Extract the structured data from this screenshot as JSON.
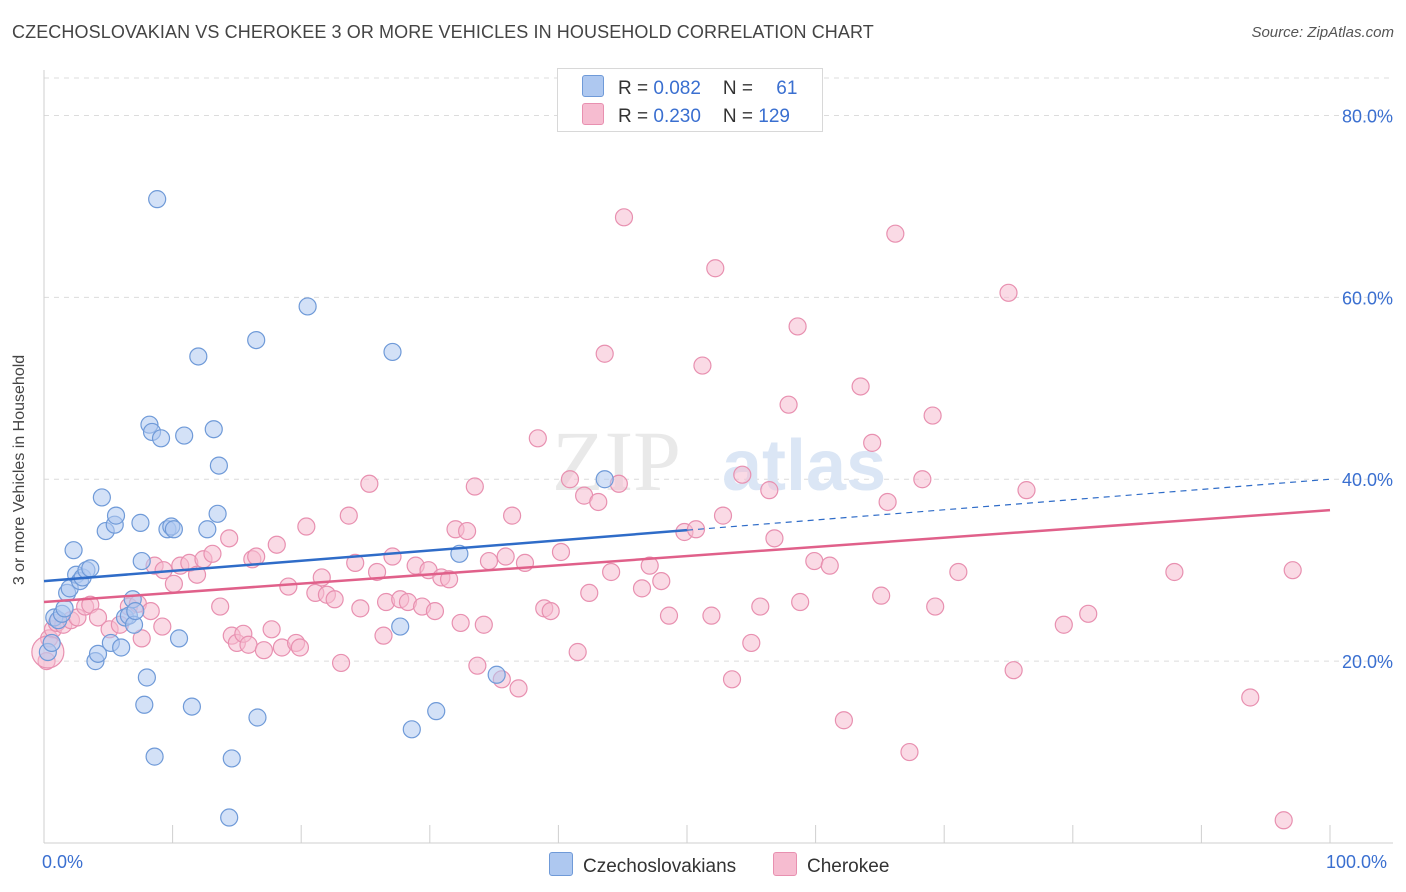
{
  "title": "CZECHOSLOVAKIAN VS CHEROKEE 3 OR MORE VEHICLES IN HOUSEHOLD CORRELATION CHART",
  "source": "Source: ZipAtlas.com",
  "legend": {
    "rows": [
      {
        "r_label": "R = ",
        "r_value": "0.082",
        "n_label": "N = ",
        "n_value": "61"
      },
      {
        "r_label": "R = ",
        "r_value": "0.230",
        "n_label": "N = ",
        "n_value": "129"
      }
    ]
  },
  "watermark": {
    "part1": "ZIP",
    "part2": "atlas"
  },
  "colors": {
    "czech_fill": "#aec8f0",
    "czech_stroke": "#6f9ad8",
    "czech_line": "#2f6cc8",
    "cherokee_fill": "#f6bcd0",
    "cherokee_stroke": "#e890b0",
    "cherokee_line": "#e0608a",
    "axis_text": "#3a6fd0",
    "grid": "#dcdcdc"
  },
  "chart_data": {
    "type": "scatter",
    "xlabel": "",
    "ylabel": "3 or more Vehicles in Household",
    "xlim": [
      0,
      100
    ],
    "ylim": [
      0,
      85
    ],
    "x_tick_labels": [
      "0.0%",
      "100.0%"
    ],
    "y_ticks": [
      20,
      40,
      60,
      80
    ],
    "y_tick_labels": [
      "20.0%",
      "40.0%",
      "60.0%",
      "80.0%"
    ],
    "grid": true,
    "legend_position": "top-center",
    "series": [
      {
        "name": "Czechoslovakians",
        "trend": {
          "x0": 0,
          "y0": 28.8,
          "x1": 100,
          "y1": 40.0,
          "solid_until_x": 50
        },
        "points": [
          [
            0.3,
            21.0
          ],
          [
            0.6,
            22.0
          ],
          [
            0.8,
            24.8
          ],
          [
            1.1,
            24.5
          ],
          [
            1.4,
            25.2
          ],
          [
            1.6,
            25.8
          ],
          [
            1.8,
            27.5
          ],
          [
            2.0,
            28.0
          ],
          [
            2.3,
            32.2
          ],
          [
            2.5,
            29.5
          ],
          [
            2.8,
            28.8
          ],
          [
            3.0,
            29.2
          ],
          [
            3.3,
            30.0
          ],
          [
            3.6,
            30.2
          ],
          [
            4.0,
            20.0
          ],
          [
            4.2,
            20.8
          ],
          [
            4.5,
            38.0
          ],
          [
            4.8,
            34.3
          ],
          [
            5.2,
            22.0
          ],
          [
            5.5,
            35.0
          ],
          [
            5.6,
            36.0
          ],
          [
            6.0,
            21.5
          ],
          [
            6.3,
            24.8
          ],
          [
            6.6,
            25.0
          ],
          [
            6.9,
            26.8
          ],
          [
            7.0,
            24.0
          ],
          [
            7.1,
            25.5
          ],
          [
            7.5,
            35.2
          ],
          [
            7.6,
            31.0
          ],
          [
            7.8,
            15.2
          ],
          [
            8.0,
            18.2
          ],
          [
            8.2,
            46.0
          ],
          [
            8.4,
            45.2
          ],
          [
            8.6,
            9.5
          ],
          [
            8.8,
            70.8
          ],
          [
            9.1,
            44.5
          ],
          [
            9.6,
            34.5
          ],
          [
            9.9,
            34.8
          ],
          [
            10.1,
            34.5
          ],
          [
            10.5,
            22.5
          ],
          [
            10.9,
            44.8
          ],
          [
            11.5,
            15.0
          ],
          [
            12.0,
            53.5
          ],
          [
            12.7,
            34.5
          ],
          [
            13.2,
            45.5
          ],
          [
            13.5,
            36.2
          ],
          [
            13.6,
            41.5
          ],
          [
            14.4,
            2.8
          ],
          [
            14.6,
            9.3
          ],
          [
            16.5,
            55.3
          ],
          [
            16.6,
            13.8
          ],
          [
            20.5,
            59.0
          ],
          [
            27.1,
            54.0
          ],
          [
            27.7,
            23.8
          ],
          [
            28.6,
            12.5
          ],
          [
            30.5,
            14.5
          ],
          [
            32.3,
            31.8
          ],
          [
            35.2,
            18.5
          ],
          [
            43.6,
            40.0
          ]
        ]
      },
      {
        "name": "Cherokee",
        "trend": {
          "x0": 0,
          "y0": 26.5,
          "x1": 100,
          "y1": 36.6,
          "solid_until_x": 100
        },
        "points": [
          [
            0.2,
            20.0
          ],
          [
            0.4,
            22.5
          ],
          [
            0.7,
            23.5
          ],
          [
            1.0,
            24.2
          ],
          [
            1.5,
            24.0
          ],
          [
            2.1,
            24.5
          ],
          [
            2.6,
            24.8
          ],
          [
            3.2,
            26.0
          ],
          [
            3.6,
            26.2
          ],
          [
            4.2,
            24.8
          ],
          [
            5.1,
            23.5
          ],
          [
            5.9,
            24.0
          ],
          [
            6.6,
            26.0
          ],
          [
            7.3,
            26.3
          ],
          [
            7.6,
            22.5
          ],
          [
            8.3,
            25.5
          ],
          [
            8.6,
            30.5
          ],
          [
            9.2,
            23.8
          ],
          [
            9.3,
            30.0
          ],
          [
            10.1,
            28.5
          ],
          [
            10.6,
            30.5
          ],
          [
            11.3,
            30.8
          ],
          [
            11.9,
            29.5
          ],
          [
            12.4,
            31.2
          ],
          [
            13.1,
            31.8
          ],
          [
            13.7,
            26.0
          ],
          [
            14.4,
            33.5
          ],
          [
            14.6,
            22.8
          ],
          [
            15.0,
            22.0
          ],
          [
            15.5,
            23.0
          ],
          [
            15.9,
            21.8
          ],
          [
            16.2,
            31.2
          ],
          [
            16.5,
            31.5
          ],
          [
            17.1,
            21.2
          ],
          [
            17.7,
            23.5
          ],
          [
            18.1,
            32.8
          ],
          [
            18.5,
            21.5
          ],
          [
            19.0,
            28.2
          ],
          [
            19.6,
            22.0
          ],
          [
            19.9,
            21.5
          ],
          [
            20.4,
            34.8
          ],
          [
            21.1,
            27.5
          ],
          [
            21.6,
            29.2
          ],
          [
            22.0,
            27.3
          ],
          [
            22.6,
            26.8
          ],
          [
            23.1,
            19.8
          ],
          [
            23.7,
            36.0
          ],
          [
            24.2,
            30.8
          ],
          [
            24.6,
            25.8
          ],
          [
            25.3,
            39.5
          ],
          [
            25.9,
            29.8
          ],
          [
            26.4,
            22.8
          ],
          [
            26.6,
            26.5
          ],
          [
            27.1,
            31.5
          ],
          [
            27.7,
            26.8
          ],
          [
            28.3,
            26.5
          ],
          [
            28.9,
            30.5
          ],
          [
            29.4,
            26.0
          ],
          [
            29.9,
            30.0
          ],
          [
            30.4,
            25.5
          ],
          [
            30.9,
            29.2
          ],
          [
            31.5,
            29.0
          ],
          [
            32.0,
            34.5
          ],
          [
            32.4,
            24.2
          ],
          [
            32.9,
            34.3
          ],
          [
            33.5,
            39.2
          ],
          [
            33.7,
            19.5
          ],
          [
            34.2,
            24.0
          ],
          [
            34.6,
            31.0
          ],
          [
            35.6,
            18.0
          ],
          [
            35.9,
            31.5
          ],
          [
            36.4,
            36.0
          ],
          [
            36.9,
            17.0
          ],
          [
            37.4,
            30.8
          ],
          [
            38.4,
            44.5
          ],
          [
            38.9,
            25.8
          ],
          [
            39.4,
            25.5
          ],
          [
            40.2,
            32.0
          ],
          [
            40.9,
            40.0
          ],
          [
            41.5,
            21.0
          ],
          [
            42.0,
            38.2
          ],
          [
            42.4,
            27.5
          ],
          [
            43.1,
            37.5
          ],
          [
            43.6,
            53.8
          ],
          [
            44.1,
            29.8
          ],
          [
            44.7,
            39.5
          ],
          [
            45.1,
            68.8
          ],
          [
            46.5,
            28.0
          ],
          [
            47.1,
            30.5
          ],
          [
            48.0,
            28.8
          ],
          [
            48.6,
            25.0
          ],
          [
            49.8,
            34.2
          ],
          [
            50.7,
            34.5
          ],
          [
            51.2,
            52.5
          ],
          [
            51.9,
            25.0
          ],
          [
            52.2,
            63.2
          ],
          [
            52.8,
            36.0
          ],
          [
            53.5,
            18.0
          ],
          [
            54.3,
            40.5
          ],
          [
            55.0,
            22.0
          ],
          [
            55.7,
            26.0
          ],
          [
            56.4,
            38.8
          ],
          [
            56.8,
            33.5
          ],
          [
            57.9,
            48.2
          ],
          [
            58.6,
            56.8
          ],
          [
            58.8,
            26.5
          ],
          [
            59.9,
            31.0
          ],
          [
            61.1,
            30.5
          ],
          [
            62.2,
            13.5
          ],
          [
            63.5,
            50.2
          ],
          [
            64.4,
            44.0
          ],
          [
            65.1,
            27.2
          ],
          [
            65.6,
            37.5
          ],
          [
            66.2,
            67.0
          ],
          [
            67.3,
            10.0
          ],
          [
            68.3,
            40.0
          ],
          [
            69.1,
            47.0
          ],
          [
            69.3,
            26.0
          ],
          [
            71.1,
            29.8
          ],
          [
            75.0,
            60.5
          ],
          [
            75.4,
            19.0
          ],
          [
            76.4,
            38.8
          ],
          [
            79.3,
            24.0
          ],
          [
            81.2,
            25.2
          ],
          [
            87.9,
            29.8
          ],
          [
            93.8,
            16.0
          ],
          [
            96.4,
            2.5
          ],
          [
            97.1,
            30.0
          ]
        ]
      }
    ]
  }
}
